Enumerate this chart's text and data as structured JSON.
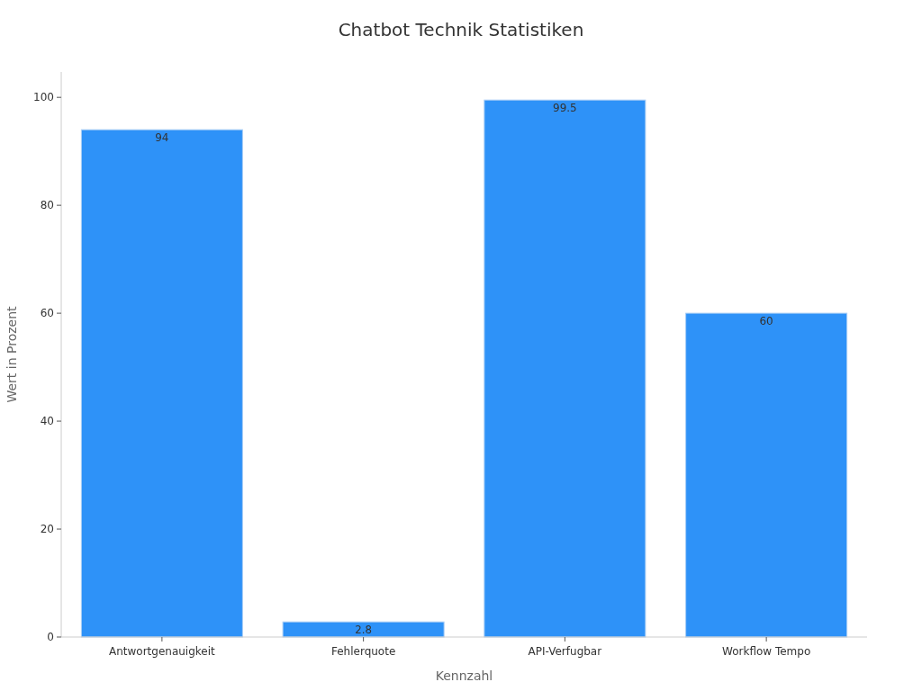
{
  "chart_data": {
    "type": "bar",
    "title": "Chatbot Technik Statistiken",
    "xlabel": "Kennzahl",
    "ylabel": "Wert in Prozent",
    "categories": [
      "Antwortgenauigkeit",
      "Fehlerquote",
      "API-Verfugbar",
      "Workflow Tempo"
    ],
    "values": [
      94,
      2.8,
      99.5,
      60
    ],
    "color": "#2e92f8",
    "ylim": [
      0,
      104.7
    ],
    "yticks": [
      0,
      20,
      40,
      60,
      80,
      100
    ],
    "grid": false,
    "data_labels": true
  }
}
